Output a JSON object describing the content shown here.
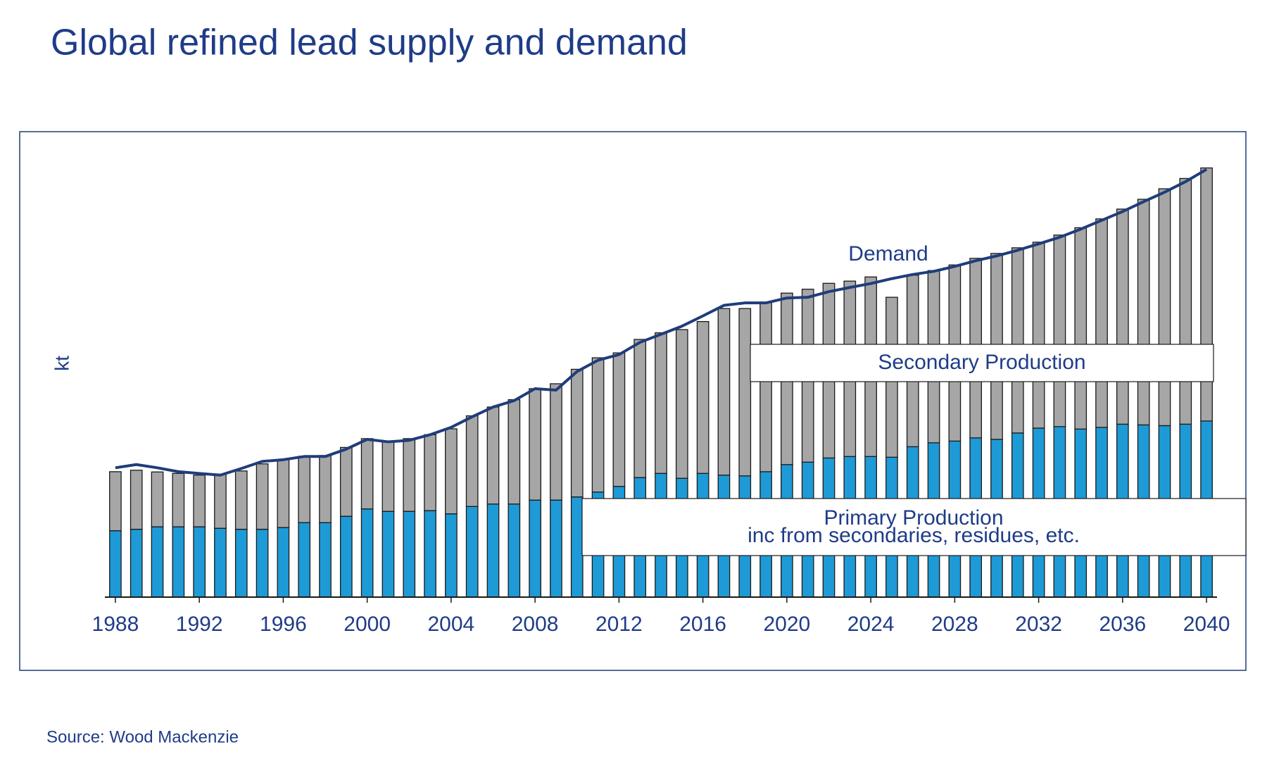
{
  "chart_data": {
    "type": "bar",
    "stacked": true,
    "title": "Global refined lead supply and demand",
    "ylabel": "kt",
    "source": "Source: Wood Mackenzie",
    "annotation": "inc from secondaries, residues, etc.",
    "x": [
      1988,
      1989,
      1990,
      1991,
      1992,
      1993,
      1994,
      1995,
      1996,
      1997,
      1998,
      1999,
      2000,
      2001,
      2002,
      2003,
      2004,
      2005,
      2006,
      2007,
      2008,
      2009,
      2010,
      2011,
      2012,
      2013,
      2014,
      2015,
      2016,
      2017,
      2018,
      2019,
      2020,
      2021,
      2022,
      2023,
      2024,
      2025,
      2026,
      2027,
      2028,
      2029,
      2030,
      2031,
      2032,
      2033,
      2034,
      2035,
      2036,
      2037,
      2038,
      2039,
      2040
    ],
    "xlim": [
      1987.5,
      2040.5
    ],
    "xticks": [
      1988,
      1992,
      1996,
      2000,
      2004,
      2008,
      2012,
      2016,
      2020,
      2024,
      2028,
      2032,
      2036,
      2040
    ],
    "ylim": [
      0,
      19000
    ],
    "series": [
      {
        "name": "Primary Production",
        "color": "#1e9ad6",
        "values": [
          2710,
          2770,
          2870,
          2870,
          2870,
          2810,
          2770,
          2770,
          2840,
          3040,
          3040,
          3300,
          3600,
          3500,
          3500,
          3530,
          3400,
          3700,
          3800,
          3800,
          3960,
          3960,
          4090,
          4290,
          4520,
          4880,
          5050,
          4850,
          5050,
          4980,
          4950,
          5120,
          5410,
          5510,
          5680,
          5740,
          5740,
          5710,
          6140,
          6300,
          6370,
          6500,
          6440,
          6700,
          6900,
          6960,
          6860,
          6930,
          7060,
          7030,
          7000,
          7060,
          7190
        ]
      },
      {
        "name": "Secondary Production",
        "color": "#a6a6a6",
        "values": [
          2410,
          2410,
          2240,
          2180,
          2110,
          2210,
          2380,
          2670,
          2770,
          2710,
          2740,
          2810,
          2870,
          2870,
          2970,
          3100,
          3470,
          3700,
          3960,
          4260,
          4550,
          4750,
          5210,
          5480,
          5450,
          5640,
          5740,
          6070,
          6200,
          6800,
          6830,
          6900,
          7000,
          7060,
          7130,
          7160,
          7330,
          6530,
          7000,
          7030,
          7190,
          7330,
          7590,
          7560,
          7590,
          7820,
          8220,
          8510,
          8780,
          9210,
          9670,
          10030,
          10330
        ]
      },
      {
        "name": "Demand",
        "color": "#1f3d7a",
        "type": "line",
        "values": [
          5280,
          5410,
          5280,
          5120,
          5050,
          4980,
          5250,
          5540,
          5610,
          5740,
          5740,
          6040,
          6440,
          6340,
          6400,
          6630,
          6930,
          7360,
          7760,
          8020,
          8510,
          8450,
          9210,
          9670,
          9900,
          10400,
          10730,
          11060,
          11480,
          11910,
          12010,
          12010,
          12210,
          12240,
          12470,
          12640,
          12800,
          13000,
          13170,
          13300,
          13500,
          13730,
          13930,
          14160,
          14420,
          14690,
          15020,
          15380,
          15740,
          16140,
          16530,
          16960,
          17460
        ]
      }
    ]
  }
}
